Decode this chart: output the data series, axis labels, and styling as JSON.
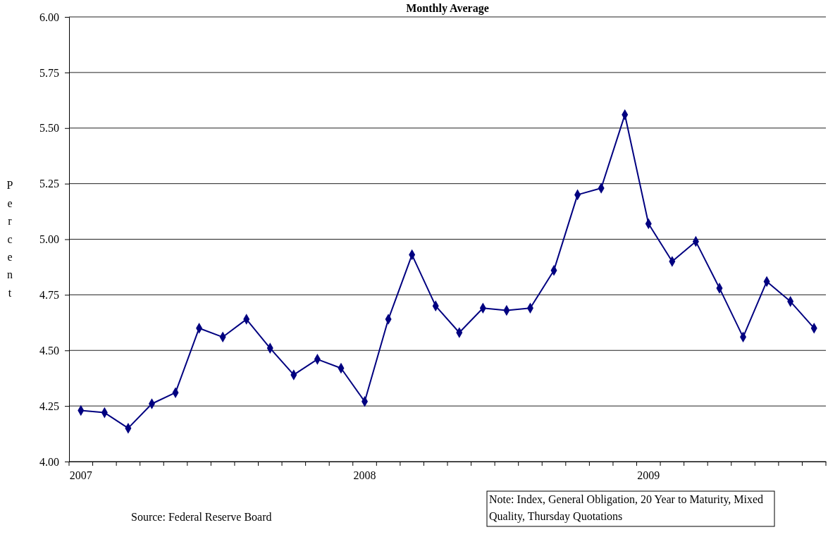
{
  "chart_data": {
    "type": "line",
    "title": "Monthly Average",
    "ylabel": "Percent",
    "annotations": [
      "Source: Federal Reserve Board",
      "Note: Index, General Obligation, 20 Year to Maturity, Mixed Quality, Thursday Quotations"
    ],
    "categories": [
      "2007",
      null,
      null,
      null,
      null,
      null,
      null,
      null,
      null,
      null,
      null,
      null,
      "2008",
      null,
      null,
      null,
      null,
      null,
      null,
      null,
      null,
      null,
      null,
      null,
      "2009",
      null,
      null,
      null,
      null,
      null,
      null,
      null
    ],
    "values": [
      4.23,
      4.22,
      4.15,
      4.26,
      4.31,
      4.6,
      4.56,
      4.64,
      4.51,
      4.39,
      4.46,
      4.42,
      4.27,
      4.64,
      4.93,
      4.7,
      4.58,
      4.69,
      4.68,
      4.69,
      4.86,
      5.2,
      5.23,
      5.56,
      5.07,
      4.9,
      4.99,
      4.78,
      4.56,
      4.81,
      4.72,
      4.6
    ],
    "color": "#000080",
    "marker": "diamond",
    "line_style": "solid",
    "grid": "y",
    "ylim": [
      4,
      6
    ],
    "yticks": [
      {
        "value": 4,
        "label": "4.00"
      },
      {
        "value": 4.25,
        "label": "4.25"
      },
      {
        "value": 4.5,
        "label": "4.50"
      },
      {
        "value": 4.75,
        "label": "4.75"
      },
      {
        "value": 5,
        "label": "5.00"
      },
      {
        "value": 5.25,
        "label": "5.25"
      },
      {
        "value": 5.5,
        "label": "5.50"
      },
      {
        "value": 5.75,
        "label": "5.75"
      },
      {
        "value": 6,
        "label": "6.00"
      }
    ]
  }
}
